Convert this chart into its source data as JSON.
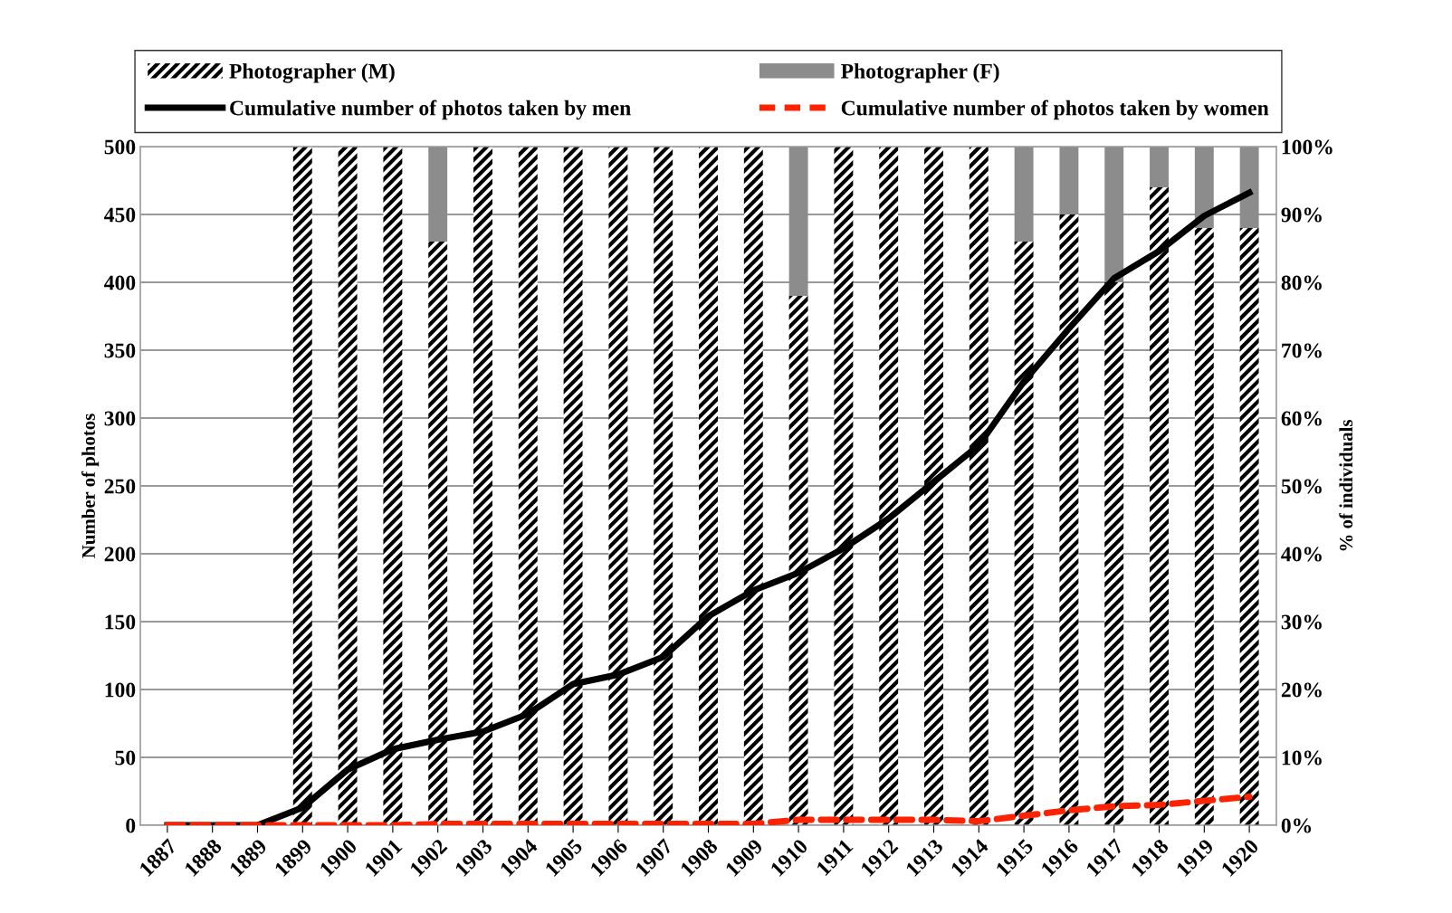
{
  "chart_data": {
    "type": "bar",
    "stacked": true,
    "categories": [
      "1887",
      "1888",
      "1889",
      "1899",
      "1900",
      "1901",
      "1902",
      "1903",
      "1904",
      "1905",
      "1906",
      "1907",
      "1908",
      "1909",
      "1910",
      "1911",
      "1912",
      "1913",
      "1914",
      "1915",
      "1916",
      "1917",
      "1918",
      "1919",
      "1920"
    ],
    "ylabel": "Number of photos",
    "y2label": "% of individuals",
    "ylim": [
      0,
      500
    ],
    "yticks": [
      0,
      50,
      100,
      150,
      200,
      250,
      300,
      350,
      400,
      450,
      500
    ],
    "y2lim": [
      0,
      100
    ],
    "y2ticks": [
      {
        "value": 0,
        "label": "0%"
      },
      {
        "value": 10,
        "label": "10%"
      },
      {
        "value": 20,
        "label": "20%"
      },
      {
        "value": 30,
        "label": "30%"
      },
      {
        "value": 40,
        "label": "40%"
      },
      {
        "value": 50,
        "label": "50%"
      },
      {
        "value": 60,
        "label": "60%"
      },
      {
        "value": 70,
        "label": "70%"
      },
      {
        "value": 80,
        "label": "80%"
      },
      {
        "value": 90,
        "label": "90%"
      },
      {
        "value": 100,
        "label": "100%"
      }
    ],
    "grid": "y",
    "legend": "top",
    "series": [
      {
        "name": "Photographer (M)",
        "type": "bar",
        "axis": "y2",
        "color": "#000000",
        "values": [
          0,
          0,
          0,
          100,
          100,
          100,
          86,
          100,
          100,
          100,
          100,
          100,
          100,
          100,
          78,
          100,
          100,
          100,
          100,
          86,
          90,
          80,
          94,
          88,
          88
        ]
      },
      {
        "name": "Photographer (F)",
        "type": "bar",
        "axis": "y2",
        "color": "#8c8c8c",
        "values": [
          0,
          0,
          0,
          0,
          0,
          0,
          14,
          0,
          0,
          0,
          0,
          0,
          0,
          0,
          22,
          0,
          0,
          0,
          0,
          14,
          10,
          20,
          6,
          12,
          12
        ]
      },
      {
        "name": "Cumulative number of photos taken by men",
        "type": "line",
        "axis": "y",
        "color": "#000000",
        "line_style": "solid",
        "values": [
          0,
          0,
          0,
          13,
          41,
          56,
          63,
          69,
          82,
          104,
          111,
          124,
          154,
          173,
          186,
          204,
          226,
          253,
          280,
          327,
          366,
          403,
          423,
          449,
          466
        ]
      },
      {
        "name": "Cumulative number of photos taken by women",
        "type": "line",
        "axis": "y",
        "color": "#ff2200",
        "line_style": "dashed",
        "values": [
          0,
          0,
          0,
          0,
          0,
          0,
          1,
          1,
          1,
          1,
          1,
          1,
          1,
          1,
          4,
          4,
          4,
          4,
          3,
          7,
          11,
          14,
          15,
          18,
          21
        ]
      }
    ]
  }
}
